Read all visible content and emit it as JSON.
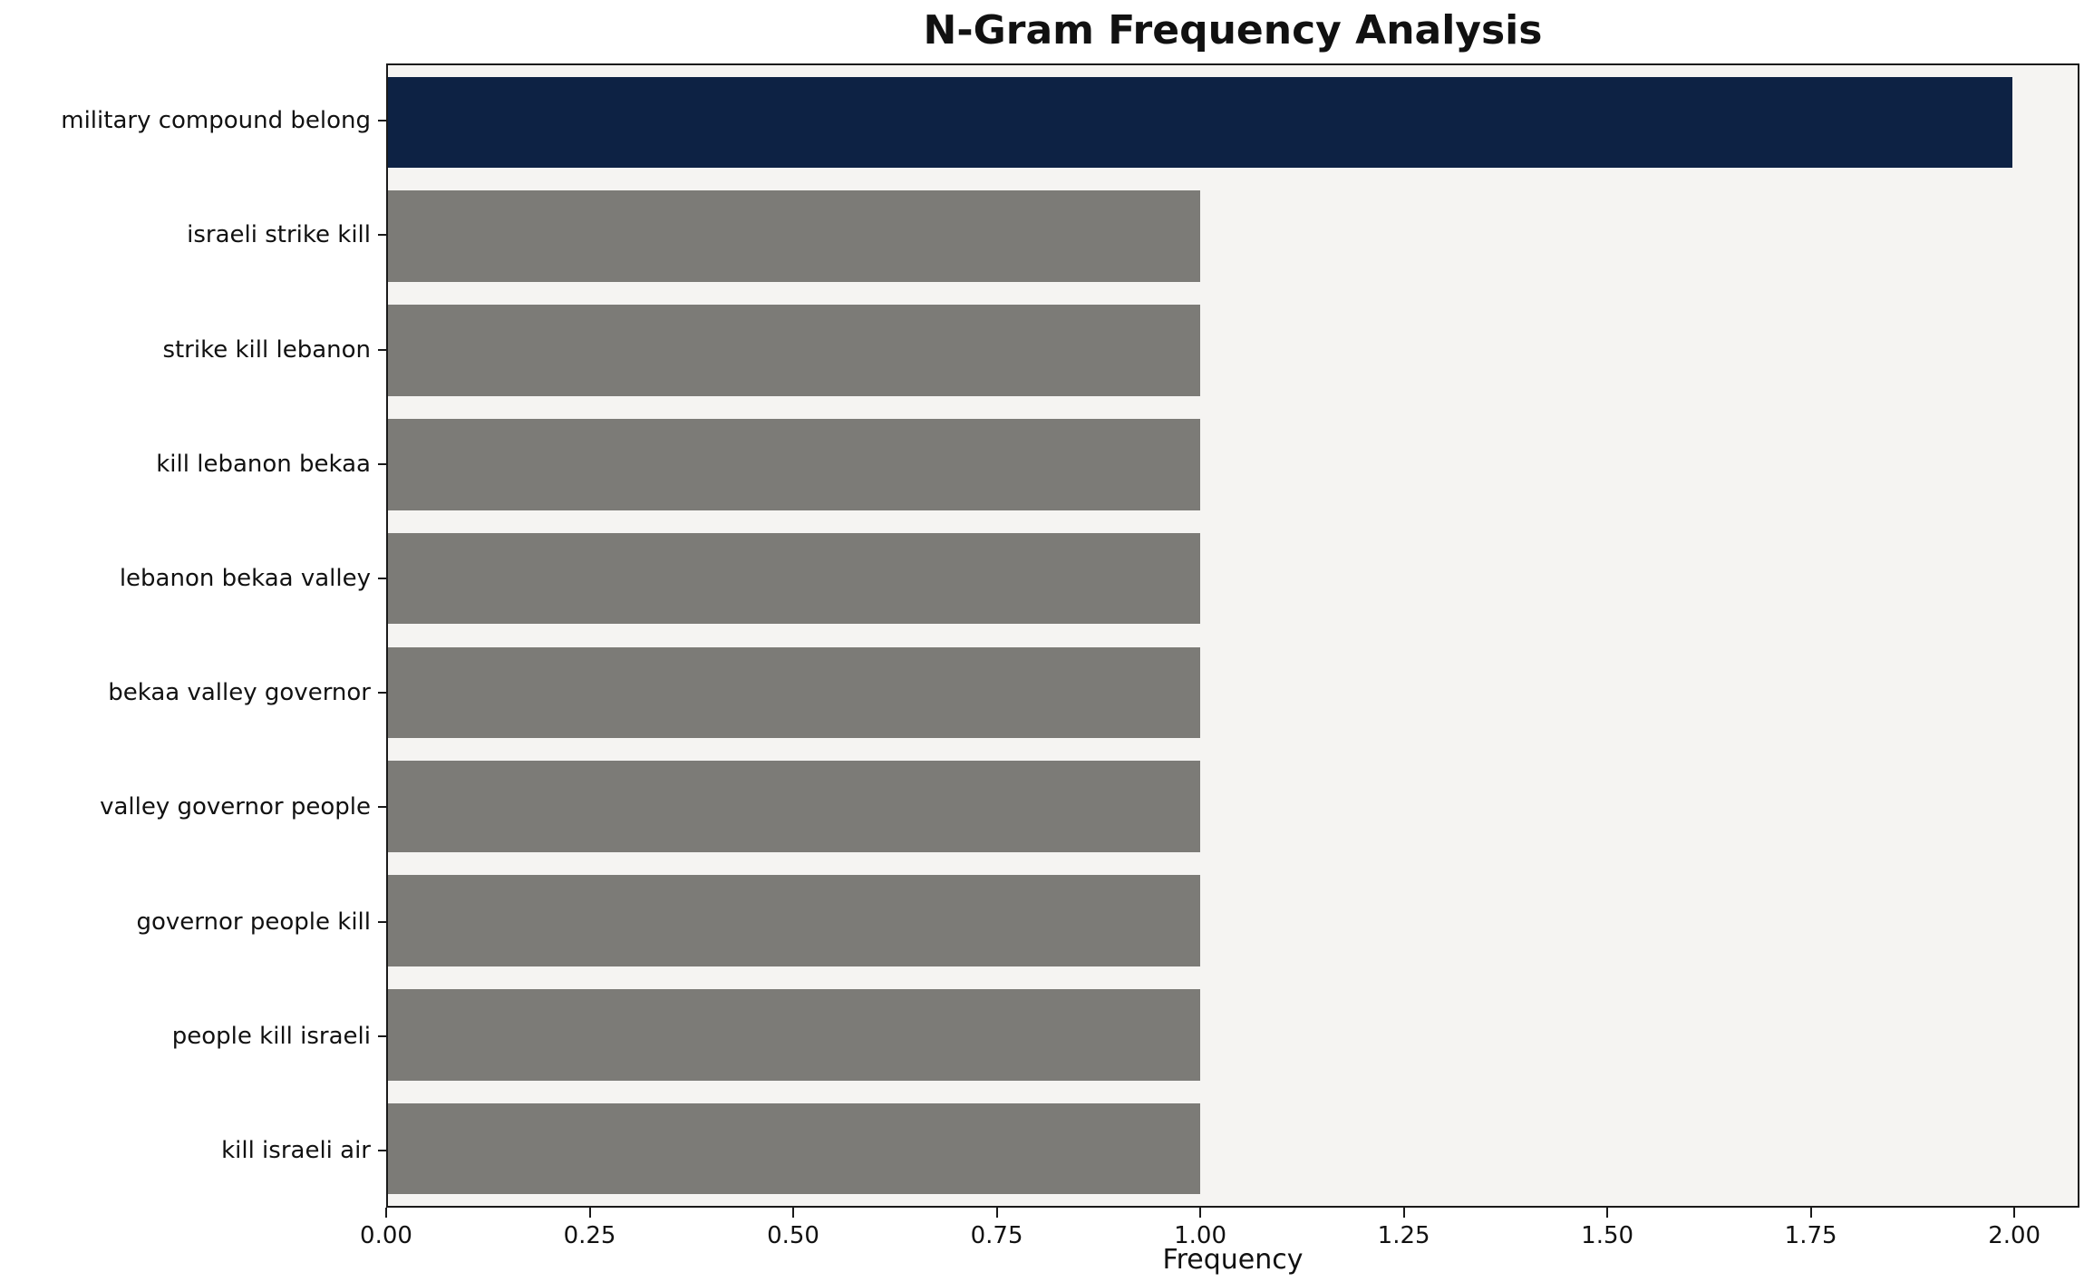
{
  "chart_data": {
    "type": "bar",
    "orientation": "horizontal",
    "title": "N-Gram Frequency Analysis",
    "xlabel": "Frequency",
    "ylabel": "",
    "categories": [
      "military compound belong",
      "israeli strike kill",
      "strike kill lebanon",
      "kill lebanon bekaa",
      "lebanon bekaa valley",
      "bekaa valley governor",
      "valley governor people",
      "governor people kill",
      "people kill israeli",
      "kill israeli air"
    ],
    "values": [
      2,
      1,
      1,
      1,
      1,
      1,
      1,
      1,
      1,
      1
    ],
    "highlight_index": 0,
    "xlim": [
      0,
      2.08
    ],
    "x_ticks": [
      0,
      0.25,
      0.5,
      0.75,
      1.0,
      1.25,
      1.5,
      1.75,
      2.0
    ],
    "x_tick_labels": [
      "0.00",
      "0.25",
      "0.50",
      "0.75",
      "1.00",
      "1.25",
      "1.50",
      "1.75",
      "2.00"
    ],
    "grid": false,
    "legend": null,
    "colors": {
      "highlight": "#0d2244",
      "default": "#7c7b77",
      "plot_bg": "#f5f4f2",
      "figure_bg": "#ffffff",
      "axis": "#1a1a1a",
      "text": "#111111"
    }
  }
}
